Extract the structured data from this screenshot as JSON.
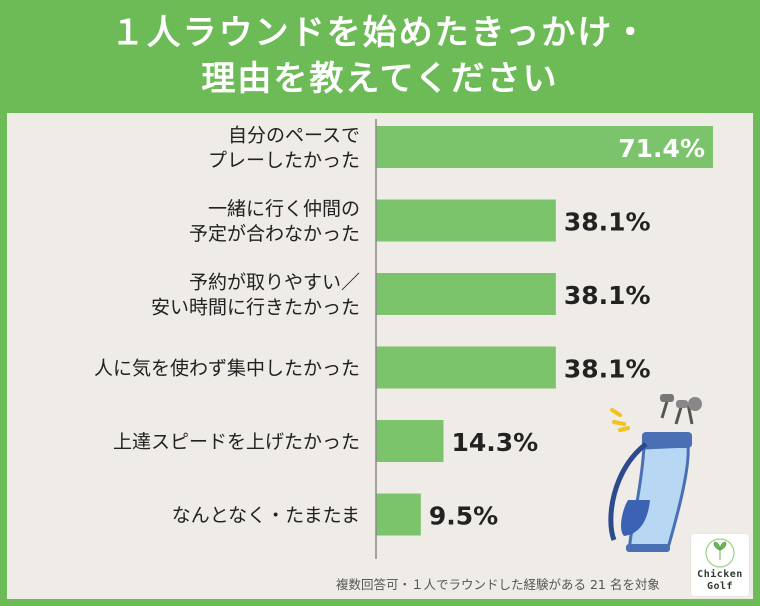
{
  "title_lines": [
    "１人ラウンドを始めたきっかけ・",
    "理由を教えてください"
  ],
  "footnote": "複数回答可・１人でラウンドした経験がある 21 名を対象",
  "logo": {
    "line1": "Chicken",
    "line2": "Golf",
    "badge_icon": "leaf-icon"
  },
  "illustration": "golf-bag-icon",
  "colors": {
    "frame": "#6dbb57",
    "panel": "#efebe6",
    "bar": "#7cc46b",
    "axis": "#8a8a8a",
    "label": "#222222",
    "value_inside": "#ffffff"
  },
  "chart_data": {
    "type": "bar",
    "orientation": "horizontal",
    "categories": [
      [
        "自分のペースで",
        "プレーしたかった"
      ],
      [
        "一緒に行く仲間の",
        "予定が合わなかった"
      ],
      [
        "予約が取りやすい／",
        "安い時間に行きたかった"
      ],
      [
        "人に気を使わず集中したかった"
      ],
      [
        "上達スピードを上げたかった"
      ],
      [
        "なんとなく・たまたま"
      ]
    ],
    "values": [
      71.4,
      38.1,
      38.1,
      38.1,
      14.3,
      9.5
    ],
    "value_labels": [
      "71.4%",
      "38.1%",
      "38.1%",
      "38.1%",
      "14.3%",
      "9.5%"
    ],
    "xlim": [
      0,
      75
    ],
    "grid": false,
    "xlabel": "",
    "ylabel": ""
  }
}
